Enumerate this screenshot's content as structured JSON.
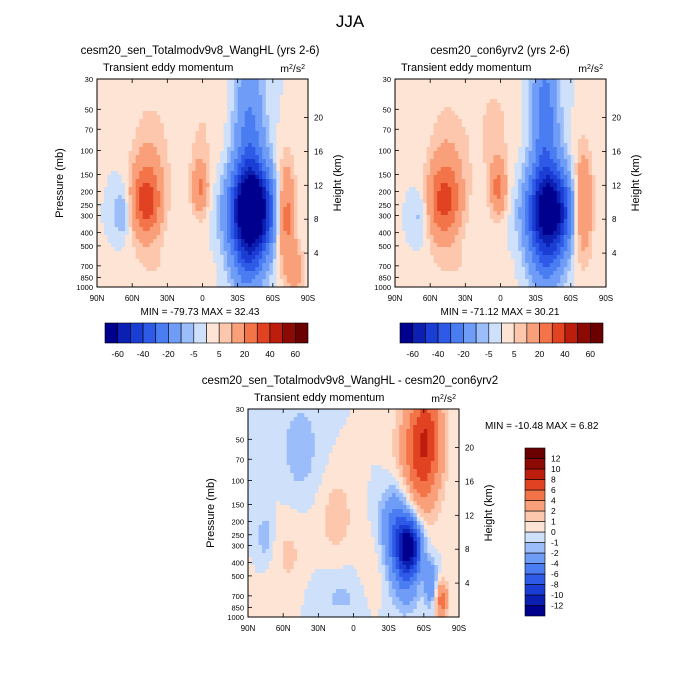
{
  "figure": {
    "title": "JJA"
  },
  "chart_data": [
    {
      "type": "heatmap",
      "title": "cesm20_sen_Totalmodv9v8_WangHL (yrs 2-6)",
      "subtitle": "Transient eddy momentum",
      "units": "m2/s2",
      "units_base": "m",
      "units_exp": "2",
      "units_den": "/s",
      "units_den_exp": "2",
      "xlabel": "",
      "ylabel": "Pressure (mb)",
      "ylabel_right": "Height (km)",
      "xticks": [
        "90N",
        "60N",
        "30N",
        "0",
        "30S",
        "60S",
        "90S"
      ],
      "xlim": [
        90,
        -90
      ],
      "yticks": [
        30,
        50,
        70,
        100,
        150,
        200,
        250,
        300,
        400,
        500,
        700,
        850,
        1000
      ],
      "ylim": [
        1000,
        30
      ],
      "yticks_right": [
        4,
        8,
        12,
        16,
        20
      ],
      "min_label": "MIN = -79.73",
      "max_label": "MAX =  32.43",
      "stats": {
        "min": -79.73,
        "max": 32.43
      },
      "features": [
        {
          "lat": -42,
          "p": 280,
          "value": -79.73,
          "dlat": 13,
          "dlog": 0.22
        },
        {
          "lat": -40,
          "p": 90,
          "value": -24,
          "dlat": 9,
          "dlog": 0.45
        },
        {
          "lat": -38,
          "p": 700,
          "value": -18,
          "dlat": 10,
          "dlog": 0.18
        },
        {
          "lat": 48,
          "p": 240,
          "value": 32.43,
          "dlat": 9,
          "dlog": 0.19
        },
        {
          "lat": 45,
          "p": 110,
          "value": 8,
          "dlat": 13,
          "dlog": 0.35
        },
        {
          "lat": 2,
          "p": 190,
          "value": 20,
          "dlat": 5,
          "dlog": 0.14
        },
        {
          "lat": 0,
          "p": 70,
          "value": 5,
          "dlat": 14,
          "dlog": 0.35
        },
        {
          "lat": -71,
          "p": 300,
          "value": 28,
          "dlat": 6,
          "dlog": 0.28
        },
        {
          "lat": -80,
          "p": 760,
          "value": 14,
          "dlat": 5,
          "dlog": 0.12
        },
        {
          "lat": 69,
          "p": 280,
          "value": -12,
          "dlat": 5,
          "dlog": 0.14
        },
        {
          "lat": 30,
          "p": 750,
          "value": 4,
          "dlat": 30,
          "dlog": 0.12
        }
      ]
    },
    {
      "type": "heatmap",
      "title": "cesm20_con6yrv2 (yrs 2-6)",
      "subtitle": "Transient eddy momentum",
      "units": "m2/s2",
      "units_base": "m",
      "units_exp": "2",
      "units_den": "/s",
      "units_den_exp": "2",
      "xlabel": "",
      "ylabel": "",
      "ylabel_right": "Height (km)",
      "xticks": [
        "90N",
        "60N",
        "30N",
        "0",
        "30S",
        "60S",
        "90S"
      ],
      "xlim": [
        90,
        -90
      ],
      "yticks": [
        30,
        50,
        70,
        100,
        150,
        200,
        250,
        300,
        400,
        500,
        700,
        850,
        1000
      ],
      "ylim": [
        1000,
        30
      ],
      "yticks_right": [
        4,
        8,
        12,
        16,
        20
      ],
      "min_label": "MIN = -71.12",
      "max_label": "MAX =  30.21",
      "stats": {
        "min": -71.12,
        "max": 30.21
      },
      "features": [
        {
          "lat": -42,
          "p": 280,
          "value": -71.12,
          "dlat": 13,
          "dlog": 0.22
        },
        {
          "lat": -38,
          "p": 60,
          "value": -26,
          "dlat": 8,
          "dlog": 0.4
        },
        {
          "lat": -38,
          "p": 700,
          "value": -16,
          "dlat": 10,
          "dlog": 0.18
        },
        {
          "lat": 48,
          "p": 240,
          "value": 30.21,
          "dlat": 10,
          "dlog": 0.2
        },
        {
          "lat": 45,
          "p": 110,
          "value": 8,
          "dlat": 13,
          "dlog": 0.35
        },
        {
          "lat": 2,
          "p": 190,
          "value": 22,
          "dlat": 5,
          "dlog": 0.14
        },
        {
          "lat": 5,
          "p": 70,
          "value": 6,
          "dlat": 14,
          "dlog": 0.35
        },
        {
          "lat": -70,
          "p": 250,
          "value": 26,
          "dlat": 6,
          "dlog": 0.28
        },
        {
          "lat": 69,
          "p": 300,
          "value": -8,
          "dlat": 5,
          "dlog": 0.14
        },
        {
          "lat": 30,
          "p": 750,
          "value": 4,
          "dlat": 30,
          "dlog": 0.12
        }
      ]
    },
    {
      "type": "heatmap",
      "title": "cesm20_sen_Totalmodv9v8_WangHL - cesm20_con6yrv2",
      "subtitle": "Transient eddy momentum",
      "units": "m2/s2",
      "units_base": "m",
      "units_exp": "2",
      "units_den": "/s",
      "units_den_exp": "2",
      "xlabel": "",
      "ylabel": "Pressure (mb)",
      "ylabel_right": "Height (km)",
      "xticks": [
        "90N",
        "60N",
        "30N",
        "0",
        "30S",
        "60S",
        "90S"
      ],
      "xlim": [
        90,
        -90
      ],
      "yticks": [
        30,
        50,
        70,
        100,
        150,
        200,
        250,
        300,
        400,
        500,
        700,
        850,
        1000
      ],
      "ylim": [
        1000,
        30
      ],
      "yticks_right": [
        4,
        8,
        12,
        16,
        20
      ],
      "min_label": "MIN = -10.48",
      "max_label": "MAX =   6.82",
      "stats": {
        "min": -10.48,
        "max": 6.82
      },
      "features": [
        {
          "lat": -48,
          "p": 300,
          "value": -10.48,
          "dlat": 7,
          "dlog": 0.13
        },
        {
          "lat": -38,
          "p": 220,
          "value": -6,
          "dlat": 10,
          "dlog": 0.22
        },
        {
          "lat": -45,
          "p": 480,
          "value": -4,
          "dlat": 8,
          "dlog": 0.18
        },
        {
          "lat": -62,
          "p": 50,
          "value": 6.82,
          "dlat": 10,
          "dlog": 0.3
        },
        {
          "lat": -50,
          "p": 85,
          "value": 3,
          "dlat": 12,
          "dlog": 0.35
        },
        {
          "lat": -75,
          "p": 760,
          "value": 5,
          "dlat": 4,
          "dlog": 0.1
        },
        {
          "lat": -66,
          "p": 560,
          "value": -4,
          "dlat": 4,
          "dlog": 0.12
        },
        {
          "lat": 75,
          "p": 260,
          "value": -2,
          "dlat": 5,
          "dlog": 0.12
        },
        {
          "lat": 45,
          "p": 60,
          "value": -1.5,
          "dlat": 14,
          "dlog": 0.3
        },
        {
          "lat": 15,
          "p": 180,
          "value": 1.5,
          "dlat": 12,
          "dlog": 0.25
        },
        {
          "lat": 55,
          "p": 350,
          "value": 1.2,
          "dlat": 12,
          "dlog": 0.25
        },
        {
          "lat": -15,
          "p": 480,
          "value": 1.2,
          "dlat": 8,
          "dlog": 0.2
        },
        {
          "lat": 10,
          "p": 700,
          "value": -1.2,
          "dlat": 20,
          "dlog": 0.15
        }
      ]
    }
  ],
  "colorbars": [
    {
      "levels": [
        -60,
        -50,
        -40,
        -30,
        -20,
        -10,
        -5,
        0,
        5,
        10,
        20,
        30,
        40,
        50,
        60
      ],
      "tick_labels": [
        "-60",
        "-40",
        "-20",
        "-5",
        "5",
        "20",
        "40",
        "60"
      ],
      "colors": [
        "#00008f",
        "#0b1fb2",
        "#1a3dd4",
        "#2f5ae8",
        "#4a7cf2",
        "#6f9cf7",
        "#9bbdf9",
        "#cfe0fb",
        "#fde4d5",
        "#fcc7ac",
        "#f9a07b",
        "#f27448",
        "#e04222",
        "#bd1d0d",
        "#8c0a04",
        "#6b0000"
      ]
    },
    {
      "levels": [
        -60,
        -50,
        -40,
        -30,
        -20,
        -10,
        -5,
        0,
        5,
        10,
        20,
        30,
        40,
        50,
        60
      ],
      "tick_labels": [
        "-60",
        "-40",
        "-20",
        "-5",
        "5",
        "20",
        "40",
        "60"
      ],
      "colors": [
        "#00008f",
        "#0b1fb2",
        "#1a3dd4",
        "#2f5ae8",
        "#4a7cf2",
        "#6f9cf7",
        "#9bbdf9",
        "#cfe0fb",
        "#fde4d5",
        "#fcc7ac",
        "#f9a07b",
        "#f27448",
        "#e04222",
        "#bd1d0d",
        "#8c0a04",
        "#6b0000"
      ]
    },
    {
      "levels": [
        -12,
        -10,
        -8,
        -6,
        -4,
        -2,
        -1,
        0,
        1,
        2,
        4,
        6,
        8,
        10,
        12
      ],
      "tick_labels": [
        "-12",
        "-10",
        "-8",
        "-6",
        "-4",
        "-2",
        "-1",
        "0",
        "1",
        "2",
        "4",
        "6",
        "8",
        "10",
        "12"
      ],
      "colors": [
        "#00008f",
        "#0b1fb2",
        "#1a3dd4",
        "#2f5ae8",
        "#4a7cf2",
        "#6f9cf7",
        "#9bbdf9",
        "#cfe0fb",
        "#fde4d5",
        "#fcc7ac",
        "#f9a07b",
        "#f27448",
        "#e04222",
        "#bd1d0d",
        "#8c0a04",
        "#6b0000"
      ]
    }
  ]
}
